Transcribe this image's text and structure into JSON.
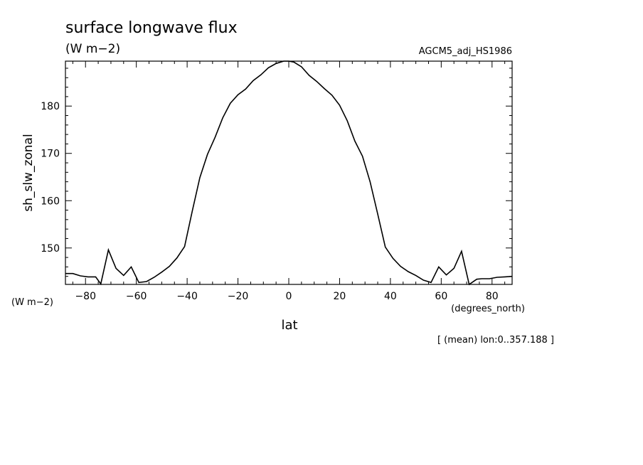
{
  "chart_data": {
    "type": "line",
    "title": "surface longwave flux",
    "units": "(W m−2)",
    "dataset": "AGCM5_adj_HS1986",
    "ylabel": "sh_slw_zonal",
    "yunits": "(W m−2)",
    "xlabel": "lat",
    "xunits": "(degrees_north)",
    "annotation": "[ (mean) lon:0..357.188 ]",
    "xlim": [
      -87.9,
      87.9
    ],
    "ylim": [
      142.3,
      189.5
    ],
    "xticks": [
      -80,
      -60,
      -40,
      -20,
      0,
      20,
      40,
      60,
      80
    ],
    "xtick_labels": [
      "−80",
      "−60",
      "−40",
      "−20",
      "0",
      "20",
      "40",
      "60",
      "80"
    ],
    "yticks": [
      150,
      160,
      170,
      180
    ],
    "ytick_labels": [
      "150",
      "160",
      "170",
      "180"
    ],
    "grid": false,
    "series": [
      {
        "color": "#000000",
        "x": [
          -87.9,
          -85,
          -82,
          -79,
          -76,
          -74,
          -71,
          -68,
          -65,
          -62,
          -59,
          -56,
          -53,
          -50,
          -47,
          -44,
          -41,
          -38,
          -35,
          -32,
          -29,
          -26,
          -23,
          -20,
          -17,
          -14,
          -11,
          -8,
          -5,
          -2,
          0,
          2,
          5,
          8,
          11,
          14,
          17,
          20,
          23,
          26,
          29,
          32,
          35,
          38,
          41,
          44,
          47,
          50,
          53,
          56,
          59,
          62,
          65,
          68,
          71,
          74,
          76,
          79,
          82,
          85,
          87.9
        ],
        "y": [
          144.6,
          144.6,
          144.1,
          143.9,
          143.9,
          142.4,
          149.6,
          145.7,
          144.2,
          146.0,
          142.7,
          142.9,
          143.8,
          144.9,
          146.1,
          147.9,
          150.3,
          157.8,
          164.9,
          169.8,
          173.4,
          177.5,
          180.6,
          182.4,
          183.6,
          185.4,
          186.6,
          188.1,
          189.0,
          189.5,
          189.5,
          189.3,
          188.3,
          186.5,
          185.2,
          183.7,
          182.3,
          180.2,
          176.9,
          172.6,
          169.4,
          164.0,
          157.2,
          150.2,
          147.8,
          146.1,
          145.0,
          144.2,
          143.2,
          142.7,
          146.0,
          144.3,
          145.7,
          149.3,
          142.3,
          143.4,
          143.5,
          143.5,
          143.8,
          143.9,
          144.0
        ]
      }
    ]
  }
}
